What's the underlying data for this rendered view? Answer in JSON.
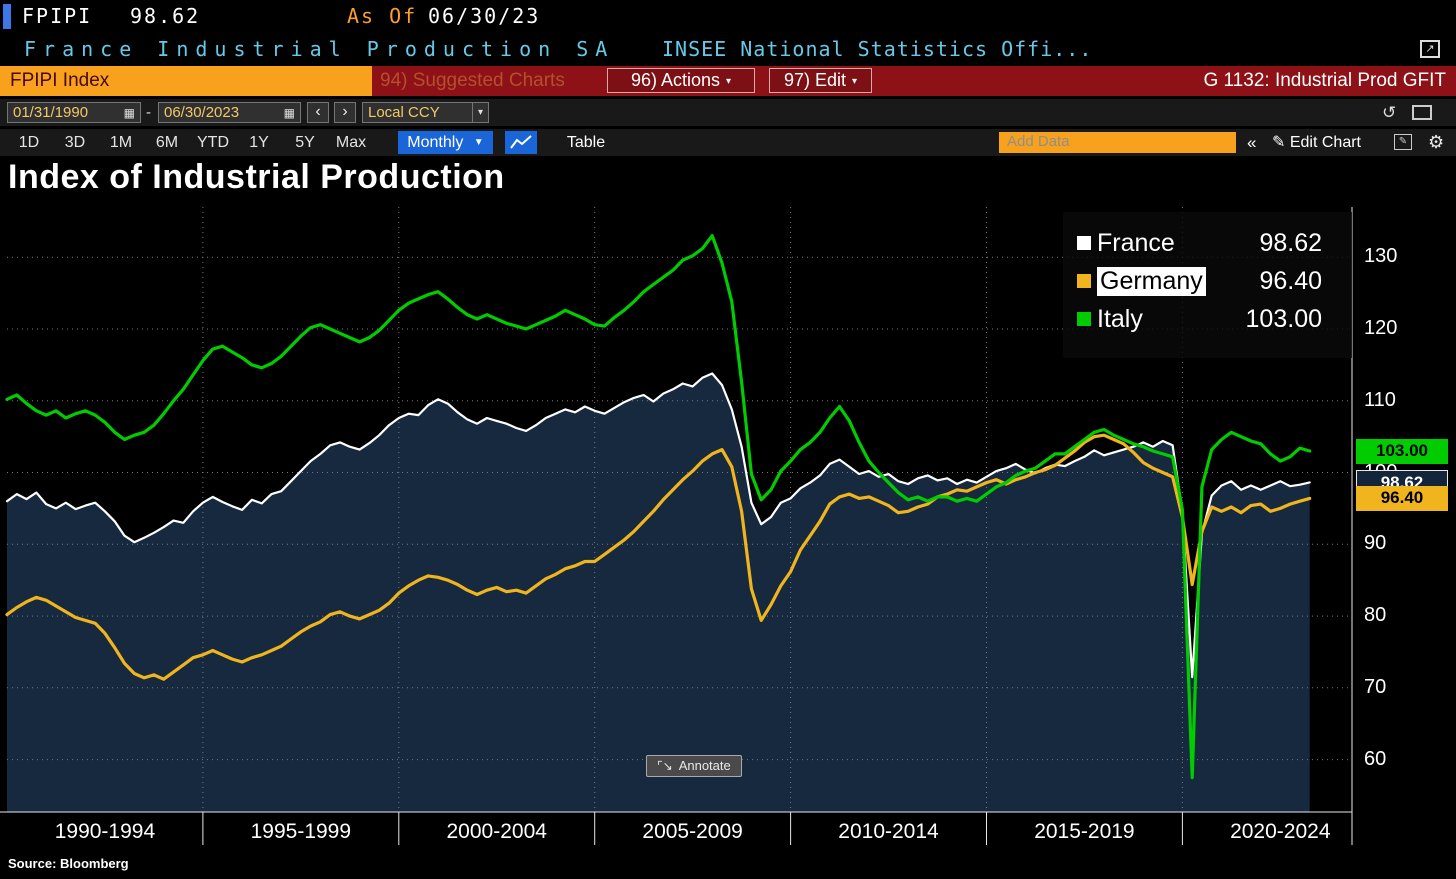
{
  "window": {
    "ticker": "FPIPI",
    "last_value": "98.62",
    "as_of_label": "As Of",
    "as_of_date": "06/30/23",
    "security_name": "France Industrial Production SA",
    "source_name": "INSEE National Statistics Offi..."
  },
  "command_bar": {
    "ticker_field": "FPIPI Index",
    "suggested_charts": "94) Suggested Charts",
    "actions": "96) Actions",
    "edit": "97) Edit",
    "chart_id": "G 1132: Industrial Prod GFIT"
  },
  "toolbar": {
    "date_from": "01/31/1990",
    "date_separator": "-",
    "date_to": "06/30/2023",
    "currency": "Local CCY",
    "periods": [
      "1D",
      "3D",
      "1M",
      "6M",
      "YTD",
      "1Y",
      "5Y",
      "Max"
    ],
    "frequency": "Monthly",
    "table_label": "Table",
    "add_data_placeholder": "Add Data",
    "edit_chart_label": "Edit Chart"
  },
  "chart": {
    "title": "Index of Industrial Production",
    "annotate_label": "Annotate",
    "source_label": "Source:  Bloomberg",
    "legend": [
      {
        "name": "France",
        "value": "98.62",
        "color": "#ffffff",
        "highlighted": false
      },
      {
        "name": "Germany",
        "value": "96.40",
        "color": "#f0b41e",
        "highlighted": true
      },
      {
        "name": "Italy",
        "value": "103.00",
        "color": "#00cc00",
        "highlighted": false
      }
    ],
    "last_tags": [
      {
        "series": "France",
        "label": "98.62",
        "value": 98.62,
        "bg": "#13253a",
        "fg": "#ffffff",
        "border": "#e8e8e8"
      },
      {
        "series": "Germany",
        "label": "96.40",
        "value": 96.4,
        "bg": "#f0b41e",
        "fg": "#000000"
      },
      {
        "series": "Italy",
        "label": "103.00",
        "value": 103.0,
        "bg": "#00cc00",
        "fg": "#000000"
      }
    ]
  },
  "chart_data": {
    "type": "line",
    "title": "Index of Industrial Production",
    "x_start": 1990.0,
    "x_step": 0.25,
    "x_domain": [
      1990,
      2024.33
    ],
    "y_domain": [
      52.7,
      137
    ],
    "y_ticks": [
      60,
      70,
      80,
      90,
      100,
      110,
      120,
      130
    ],
    "x_grid_years": [
      1995,
      2000,
      2005,
      2010,
      2015,
      2020
    ],
    "x_axis_labels": [
      "1990-1994",
      "1995-1999",
      "2000-2004",
      "2005-2009",
      "2010-2014",
      "2015-2019",
      "2020-2024"
    ],
    "legend_position": "top-right",
    "series": [
      {
        "name": "France",
        "color": "#ffffff",
        "width": 2.2,
        "fill": "#16293f",
        "values": [
          96.0,
          97.0,
          96.3,
          97.2,
          95.6,
          95.0,
          95.8,
          94.9,
          95.4,
          95.8,
          94.6,
          93.2,
          91.2,
          90.3,
          90.9,
          91.6,
          92.4,
          93.3,
          93.0,
          94.6,
          95.8,
          96.6,
          95.9,
          95.3,
          94.8,
          96.2,
          95.7,
          97.0,
          97.4,
          98.8,
          100.2,
          101.6,
          102.6,
          103.8,
          104.2,
          103.6,
          103.2,
          104.1,
          105.2,
          106.6,
          107.6,
          108.2,
          108.0,
          109.4,
          110.2,
          109.6,
          108.4,
          107.4,
          106.8,
          107.6,
          107.2,
          106.8,
          106.2,
          105.8,
          106.6,
          107.6,
          108.2,
          108.8,
          108.4,
          109.2,
          108.6,
          108.2,
          109.0,
          109.8,
          110.4,
          110.8,
          109.9,
          111.0,
          111.6,
          112.4,
          112.0,
          113.2,
          113.8,
          112.2,
          108.8,
          103.6,
          95.8,
          92.8,
          93.8,
          95.8,
          96.4,
          97.8,
          98.6,
          99.6,
          101.2,
          101.8,
          100.8,
          99.8,
          100.2,
          99.4,
          99.8,
          98.8,
          98.4,
          99.2,
          99.6,
          98.9,
          99.2,
          98.4,
          99.0,
          98.6,
          99.4,
          100.2,
          100.6,
          101.2,
          100.4,
          99.9,
          100.6,
          101.1,
          100.9,
          101.6,
          102.2,
          103.1,
          102.4,
          102.8,
          103.2,
          103.6,
          104.2,
          103.6,
          104.4,
          103.8,
          94.5,
          71.5,
          91.5,
          96.8,
          98.2,
          98.8,
          97.6,
          98.2,
          97.6,
          98.2,
          98.8,
          98.1,
          98.3,
          98.62
        ]
      },
      {
        "name": "Germany",
        "color": "#f0b41e",
        "width": 3.2,
        "values": [
          80.2,
          81.2,
          82.0,
          82.6,
          82.2,
          81.4,
          80.6,
          79.8,
          79.4,
          79.0,
          77.6,
          75.6,
          73.4,
          72.0,
          71.4,
          71.8,
          71.2,
          72.2,
          73.2,
          74.2,
          74.6,
          75.2,
          74.6,
          74.0,
          73.6,
          74.2,
          74.6,
          75.2,
          75.8,
          76.8,
          77.8,
          78.6,
          79.2,
          80.2,
          80.6,
          80.0,
          79.6,
          80.2,
          80.8,
          81.8,
          83.2,
          84.2,
          85.0,
          85.6,
          85.4,
          85.0,
          84.4,
          83.6,
          83.0,
          83.6,
          84.0,
          83.4,
          83.6,
          83.2,
          84.2,
          85.2,
          85.8,
          86.6,
          87.0,
          87.6,
          87.6,
          88.6,
          89.6,
          90.6,
          91.8,
          93.2,
          94.6,
          96.2,
          97.6,
          99.0,
          100.2,
          101.6,
          102.6,
          103.2,
          100.8,
          94.6,
          83.8,
          79.4,
          81.6,
          84.2,
          86.2,
          89.2,
          91.2,
          93.2,
          95.6,
          96.6,
          97.0,
          96.4,
          96.6,
          96.0,
          95.4,
          94.4,
          94.6,
          95.2,
          95.6,
          96.6,
          97.0,
          97.6,
          97.4,
          98.0,
          98.6,
          99.0,
          98.4,
          99.0,
          99.4,
          100.0,
          100.4,
          101.0,
          102.0,
          103.0,
          104.2,
          105.0,
          105.2,
          104.6,
          104.0,
          102.8,
          101.4,
          100.6,
          100.0,
          99.4,
          93.8,
          84.4,
          91.8,
          95.2,
          94.6,
          95.2,
          94.4,
          95.4,
          95.6,
          94.6,
          95.0,
          95.6,
          96.0,
          96.4
        ]
      },
      {
        "name": "Italy",
        "color": "#00cc00",
        "width": 3.2,
        "values": [
          110.2,
          110.8,
          109.6,
          108.6,
          108.0,
          108.6,
          107.6,
          108.2,
          108.6,
          108.0,
          107.0,
          105.6,
          104.6,
          105.2,
          105.6,
          106.6,
          108.2,
          110.0,
          111.6,
          113.6,
          115.6,
          117.2,
          117.6,
          116.8,
          116.0,
          115.0,
          114.6,
          115.2,
          116.2,
          117.6,
          119.0,
          120.2,
          120.6,
          120.0,
          119.4,
          118.8,
          118.2,
          118.8,
          119.8,
          121.2,
          122.6,
          123.6,
          124.2,
          124.8,
          125.2,
          124.2,
          123.0,
          122.0,
          121.4,
          122.0,
          121.4,
          120.8,
          120.4,
          120.0,
          120.6,
          121.2,
          121.8,
          122.6,
          122.0,
          121.4,
          120.6,
          120.4,
          121.6,
          122.6,
          123.8,
          125.2,
          126.2,
          127.2,
          128.2,
          129.6,
          130.2,
          131.2,
          133.0,
          129.2,
          123.8,
          112.6,
          99.8,
          96.2,
          97.6,
          100.2,
          101.6,
          103.2,
          104.2,
          105.6,
          107.6,
          109.2,
          107.2,
          104.2,
          101.6,
          100.0,
          98.6,
          97.2,
          96.2,
          96.6,
          96.0,
          96.6,
          96.6,
          96.0,
          96.4,
          96.0,
          97.0,
          98.0,
          98.6,
          99.6,
          100.2,
          100.6,
          101.6,
          102.6,
          102.6,
          103.6,
          104.6,
          105.6,
          106.0,
          105.2,
          104.6,
          104.0,
          103.6,
          103.0,
          102.6,
          102.2,
          94.8,
          57.5,
          98.0,
          103.2,
          104.6,
          105.6,
          105.0,
          104.4,
          104.0,
          102.6,
          101.6,
          102.2,
          103.4,
          103.0
        ]
      }
    ]
  }
}
